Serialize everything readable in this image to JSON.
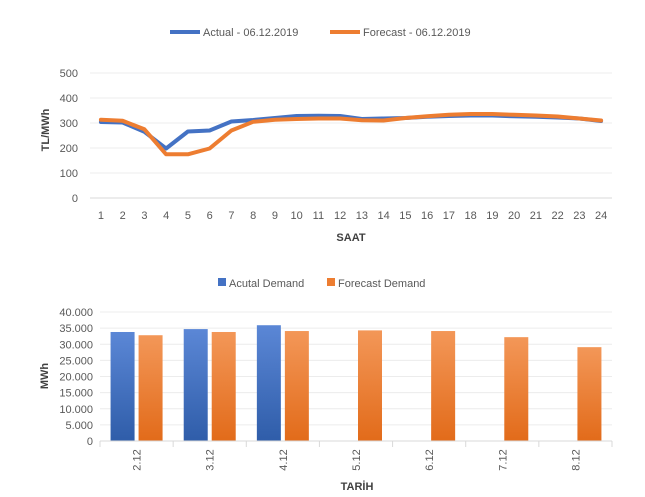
{
  "chart_data": [
    {
      "type": "line",
      "legend_position": "top",
      "xlabel": "SAAT",
      "ylabel": "TL/MWh",
      "ylim": [
        0,
        500
      ],
      "yticks": [
        "0",
        "100",
        "200",
        "300",
        "400",
        "500"
      ],
      "x": [
        "1",
        "2",
        "3",
        "4",
        "5",
        "6",
        "7",
        "8",
        "9",
        "10",
        "11",
        "12",
        "13",
        "14",
        "15",
        "16",
        "17",
        "18",
        "19",
        "20",
        "21",
        "22",
        "23",
        "24"
      ],
      "series": [
        {
          "name": "Actual - 06.12.2019",
          "color": "#4472C4",
          "values": [
            304,
            302,
            265,
            198,
            266,
            270,
            306,
            312,
            320,
            328,
            329,
            328,
            316,
            318,
            320,
            325,
            328,
            330,
            330,
            327,
            325,
            322,
            318,
            308
          ]
        },
        {
          "name": "Forecast - 06.12.2019",
          "color": "#ED7D31",
          "values": [
            313,
            309,
            275,
            175,
            175,
            198,
            270,
            305,
            313,
            316,
            318,
            318,
            311,
            310,
            320,
            327,
            333,
            336,
            336,
            333,
            330,
            326,
            318,
            310
          ]
        }
      ]
    },
    {
      "type": "bar",
      "legend_position": "top",
      "xlabel": "TARİH",
      "ylabel": "MWh",
      "ylim": [
        0,
        40000
      ],
      "yticks": [
        "0",
        "5.000",
        "10.000",
        "15.000",
        "20.000",
        "25.000",
        "30.000",
        "35.000",
        "40.000"
      ],
      "categories": [
        "2.12",
        "3.12",
        "4.12",
        "5.12",
        "6.12",
        "7.12",
        "8.12"
      ],
      "series": [
        {
          "name": "Acutal Demand",
          "color": "#4472C4",
          "values": [
            33800,
            34700,
            35900,
            null,
            null,
            null,
            null
          ]
        },
        {
          "name": "Forecast Demand",
          "color": "#ED7D31",
          "values": [
            32800,
            33800,
            34100,
            34300,
            34100,
            32200,
            29100
          ]
        }
      ]
    }
  ]
}
